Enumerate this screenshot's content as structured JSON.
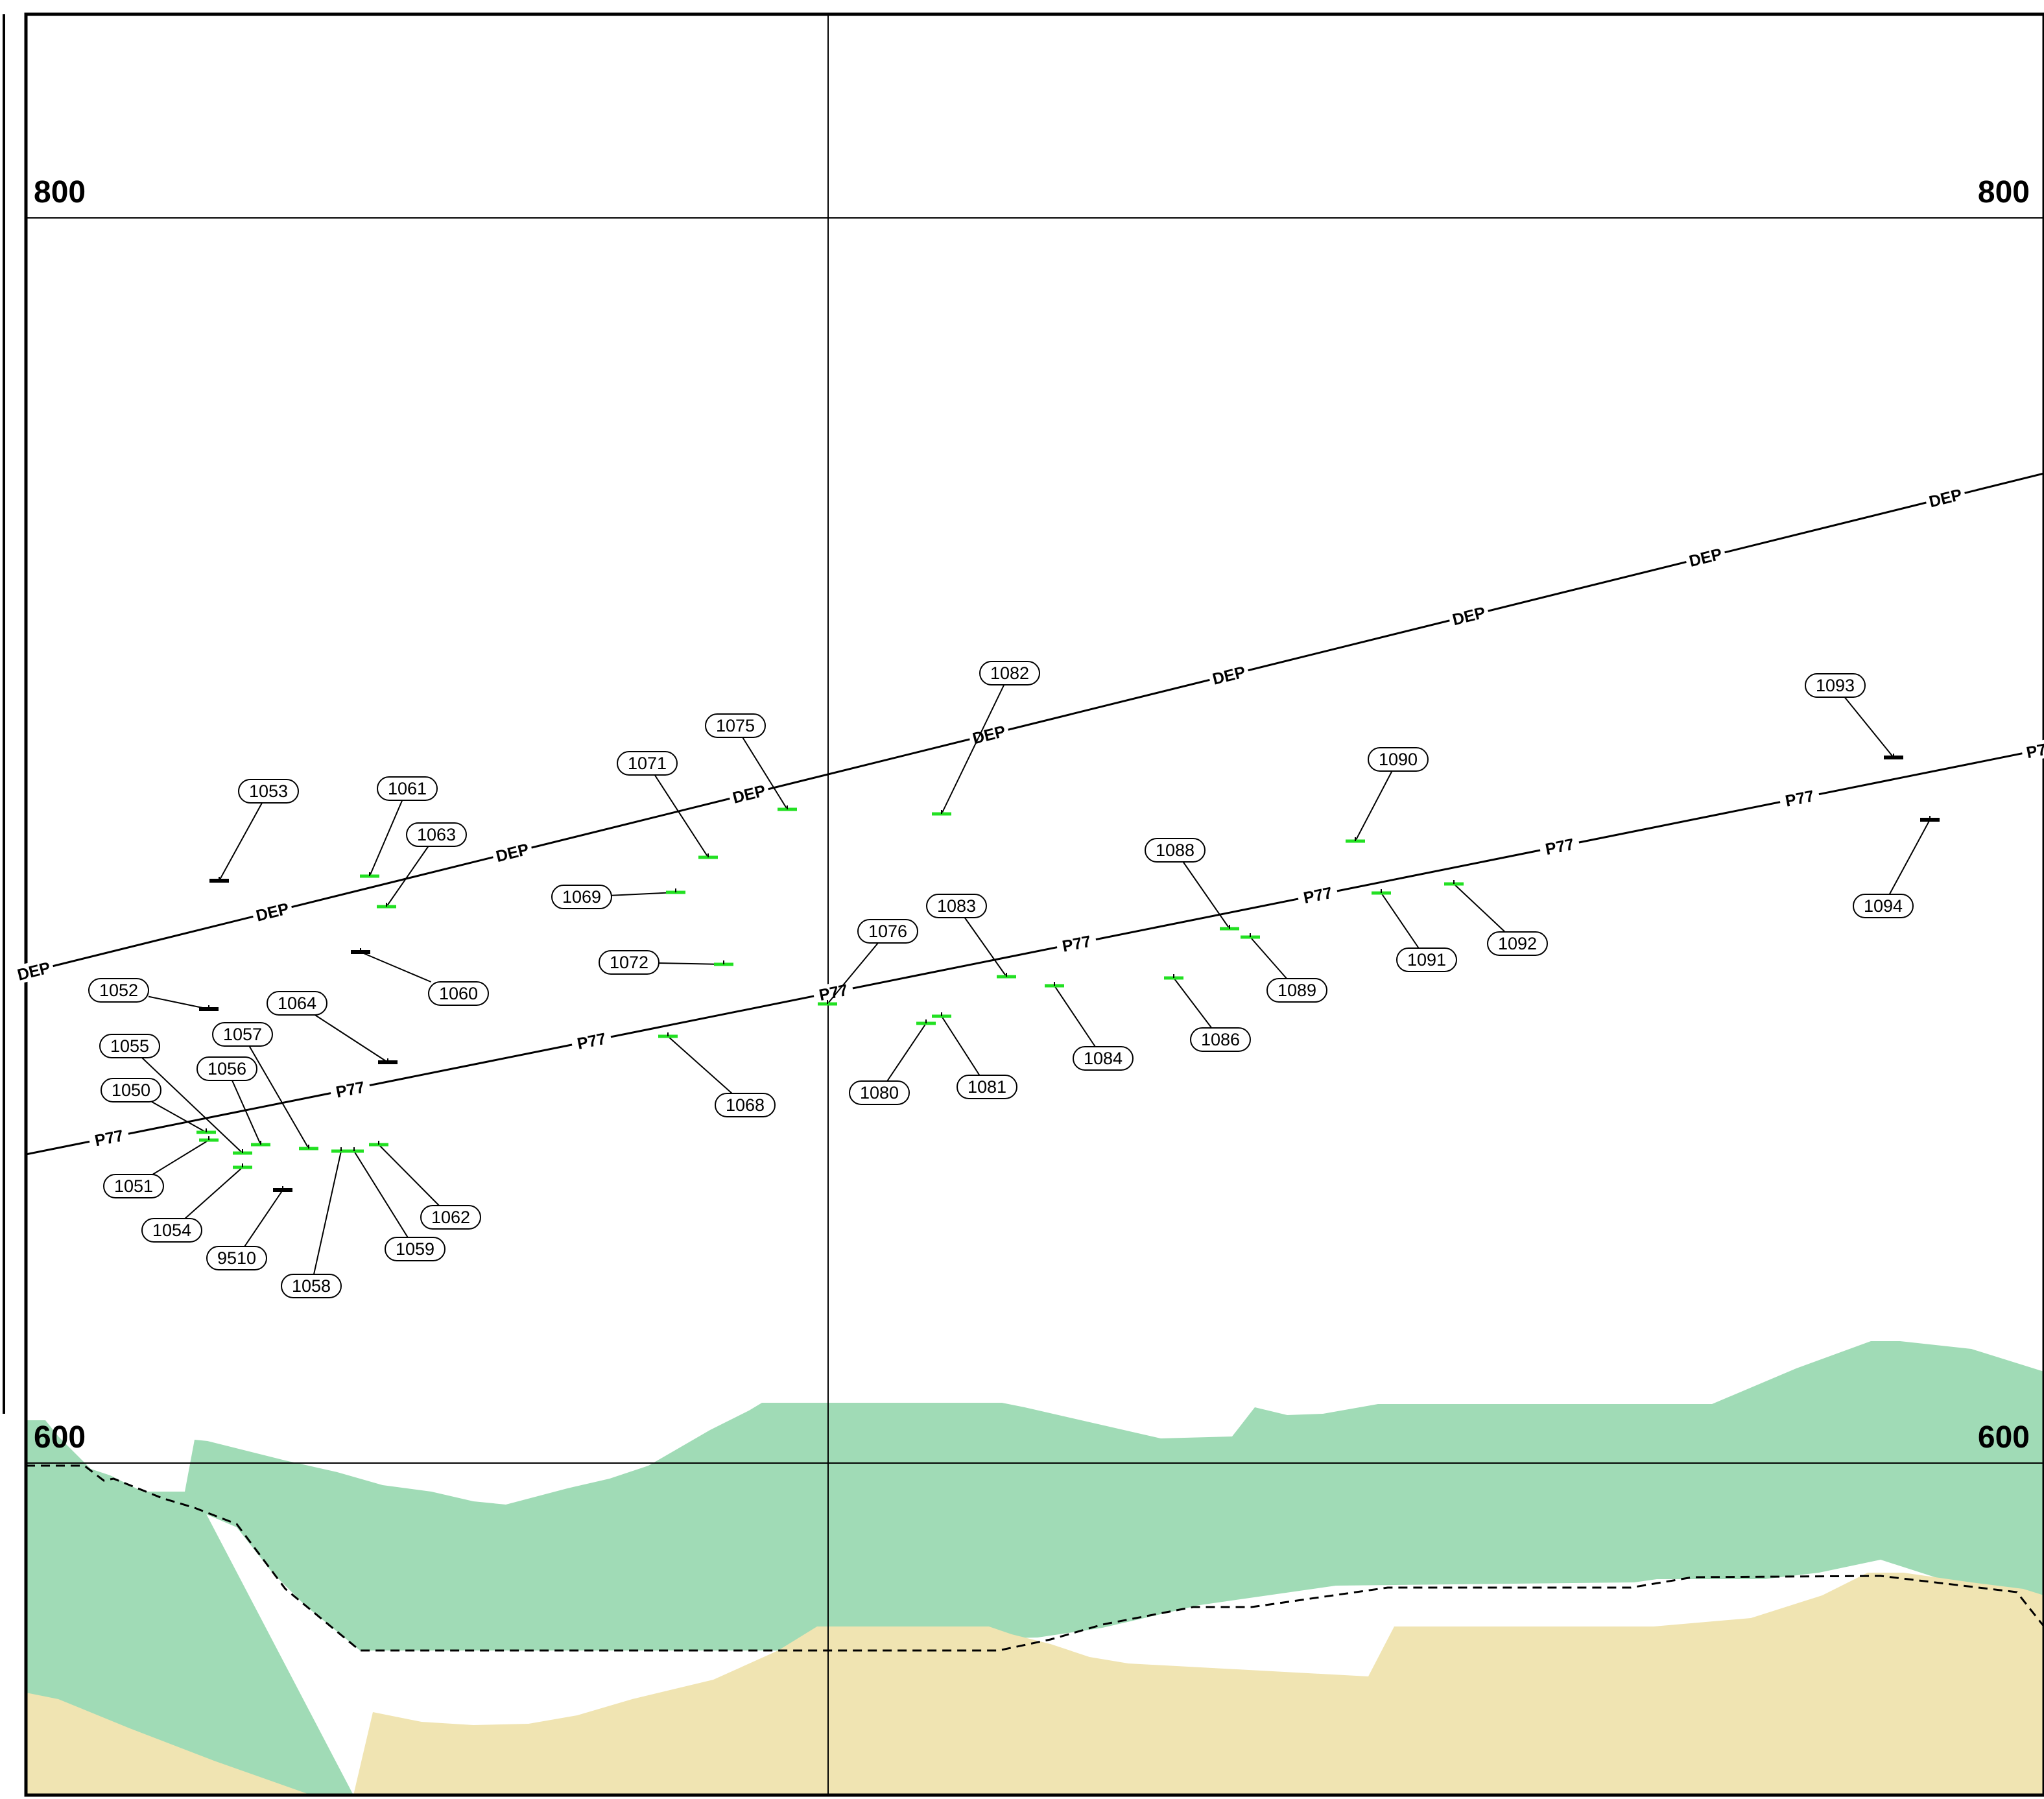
{
  "colors": {
    "green_zone": "#a0dbb6",
    "sand_zone": "#f0e4b2",
    "marker_active": "#22e022",
    "marker_inactive": "#000000",
    "line": "#000000",
    "dashed_line": "#000000"
  },
  "grid_labels": {
    "top_left": "800",
    "top_right": "800",
    "bottom_left": "600",
    "bottom_right": "600"
  },
  "survey_lines": [
    {
      "name": "DEP",
      "labels": [
        "DEP",
        "DEP",
        "DEP",
        "DEP",
        "DEP",
        "DEP",
        "DEP",
        "DEP",
        "DEP",
        "DEP"
      ]
    },
    {
      "name": "P77",
      "labels": [
        "P77",
        "P77",
        "P77",
        "P77",
        "P77",
        "P77",
        "P77",
        "P77",
        "P77",
        "P77",
        "P77",
        "P7"
      ]
    }
  ],
  "points": [
    {
      "id": "1050",
      "status": "active"
    },
    {
      "id": "1051",
      "status": "active"
    },
    {
      "id": "1052",
      "status": "inactive"
    },
    {
      "id": "1053",
      "status": "inactive"
    },
    {
      "id": "1054",
      "status": "active"
    },
    {
      "id": "1055",
      "status": "active"
    },
    {
      "id": "1056",
      "status": "active"
    },
    {
      "id": "1057",
      "status": "active"
    },
    {
      "id": "1058",
      "status": "active"
    },
    {
      "id": "1059",
      "status": "active"
    },
    {
      "id": "1060",
      "status": "inactive"
    },
    {
      "id": "1061",
      "status": "active"
    },
    {
      "id": "1062",
      "status": "active"
    },
    {
      "id": "1063",
      "status": "active"
    },
    {
      "id": "1064",
      "status": "inactive"
    },
    {
      "id": "9510",
      "status": "inactive"
    },
    {
      "id": "1068",
      "status": "active"
    },
    {
      "id": "1069",
      "status": "active"
    },
    {
      "id": "1071",
      "status": "active"
    },
    {
      "id": "1072",
      "status": "active"
    },
    {
      "id": "1075",
      "status": "active"
    },
    {
      "id": "1076",
      "status": "active"
    },
    {
      "id": "1080",
      "status": "active"
    },
    {
      "id": "1081",
      "status": "active"
    },
    {
      "id": "1082",
      "status": "active"
    },
    {
      "id": "1083",
      "status": "active"
    },
    {
      "id": "1084",
      "status": "active"
    },
    {
      "id": "1086",
      "status": "active"
    },
    {
      "id": "1088",
      "status": "active"
    },
    {
      "id": "1089",
      "status": "active"
    },
    {
      "id": "1090",
      "status": "active"
    },
    {
      "id": "1091",
      "status": "active"
    },
    {
      "id": "1092",
      "status": "active"
    },
    {
      "id": "1093",
      "status": "inactive"
    },
    {
      "id": "1094",
      "status": "inactive"
    }
  ]
}
